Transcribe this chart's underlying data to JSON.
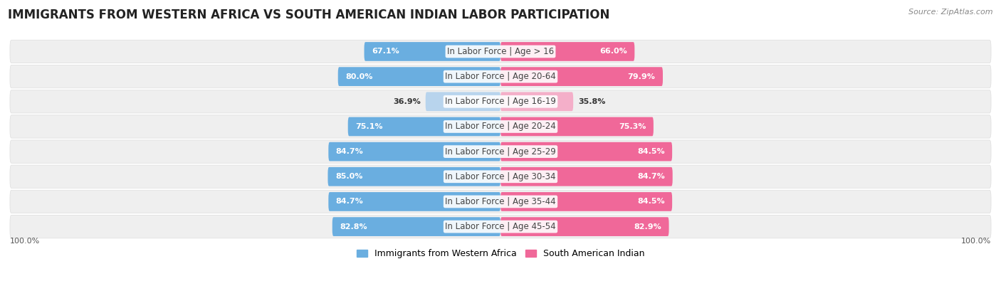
{
  "title": "IMMIGRANTS FROM WESTERN AFRICA VS SOUTH AMERICAN INDIAN LABOR PARTICIPATION",
  "source": "Source: ZipAtlas.com",
  "categories": [
    "In Labor Force | Age > 16",
    "In Labor Force | Age 20-64",
    "In Labor Force | Age 16-19",
    "In Labor Force | Age 20-24",
    "In Labor Force | Age 25-29",
    "In Labor Force | Age 30-34",
    "In Labor Force | Age 35-44",
    "In Labor Force | Age 45-54"
  ],
  "western_africa": [
    67.1,
    80.0,
    36.9,
    75.1,
    84.7,
    85.0,
    84.7,
    82.8
  ],
  "south_american_indian": [
    66.0,
    79.9,
    35.8,
    75.3,
    84.5,
    84.7,
    84.5,
    82.9
  ],
  "wa_color_strong": "#6aaee0",
  "wa_color_light": "#b8d4ed",
  "sai_color_strong": "#f06899",
  "sai_color_light": "#f4afc9",
  "row_bg_even": "#f0f0f0",
  "row_bg_odd": "#e8e8e8",
  "title_fontsize": 12,
  "label_fontsize": 8.5,
  "value_fontsize": 8,
  "legend_fontsize": 9,
  "source_fontsize": 8,
  "background_color": "#ffffff",
  "threshold": 50
}
